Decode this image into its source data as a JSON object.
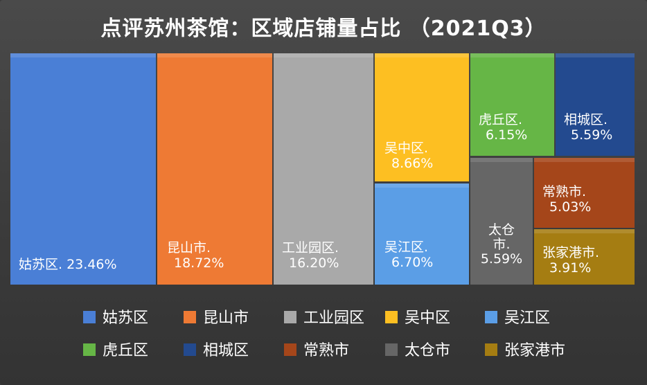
{
  "chart_data": {
    "type": "treemap",
    "title": "点评苏州茶馆：区域店铺量占比 （2021Q3）",
    "unit": "%",
    "legend_position": "bottom",
    "items": [
      {
        "name": "姑苏区",
        "label": "姑苏区.",
        "value": 23.46,
        "value_text": "23.46%",
        "color": "#4a7fd6"
      },
      {
        "name": "昆山市",
        "label": "昆山市.",
        "value": 18.72,
        "value_text": "18.72%",
        "color": "#ee7a34"
      },
      {
        "name": "工业园区",
        "label": "工业园区.",
        "value": 16.2,
        "value_text": "16.20%",
        "color": "#a9a9a9"
      },
      {
        "name": "吴中区",
        "label": "吴中区.",
        "value": 8.66,
        "value_text": "8.66%",
        "color": "#fdbf22"
      },
      {
        "name": "吴江区",
        "label": "吴江区.",
        "value": 6.7,
        "value_text": "6.70%",
        "color": "#5b9ee6"
      },
      {
        "name": "虎丘区",
        "label": "虎丘区.",
        "value": 6.15,
        "value_text": "6.15%",
        "color": "#66b646"
      },
      {
        "name": "相城区",
        "label": "相城区.",
        "value": 5.59,
        "value_text": "5.59%",
        "color": "#234a8f"
      },
      {
        "name": "常熟市",
        "label": "常熟市.",
        "value": 5.03,
        "value_text": "5.03%",
        "color": "#a5461a"
      },
      {
        "name": "太仓市",
        "label": "太仓市.",
        "value": 5.59,
        "value_text": "5.59%",
        "color": "#666666"
      },
      {
        "name": "张家港市",
        "label": "张家港市.",
        "value": 3.91,
        "value_text": "3.91%",
        "color": "#a57d12"
      }
    ]
  }
}
